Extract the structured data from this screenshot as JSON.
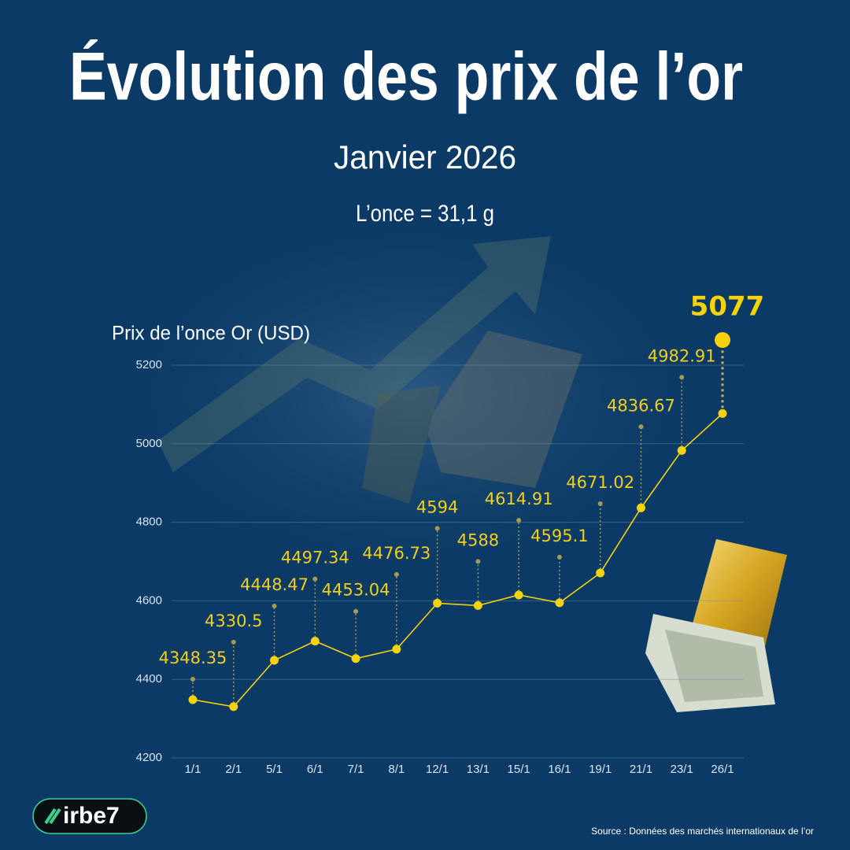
{
  "chart_data": {
    "type": "line",
    "title": "Évolution des prix de l’or",
    "subtitle": "Janvier 2026",
    "note": "L’once = 31,1 g",
    "y_label": "Prix de  l’once Or (USD)",
    "source": "Source : Données des marchés internationaux de l’or",
    "brand": "irbe7",
    "categories": [
      "1/1",
      "2/1",
      "5/1",
      "6/1",
      "7/1",
      "8/1",
      "12/1",
      "13/1",
      "15/1",
      "16/1",
      "19/1",
      "21/1",
      "23/1",
      "26/1"
    ],
    "values": [
      4348.35,
      4330.5,
      4448.47,
      4497.34,
      4453.04,
      4476.73,
      4594,
      4588,
      4614.91,
      4595.1,
      4671.02,
      4836.67,
      4982.91,
      5077
    ],
    "color": "#f5d20a",
    "ylim": [
      4200,
      5200
    ],
    "yticks": [
      4200,
      4400,
      4600,
      4800,
      5000,
      5200
    ],
    "grid": true
  }
}
